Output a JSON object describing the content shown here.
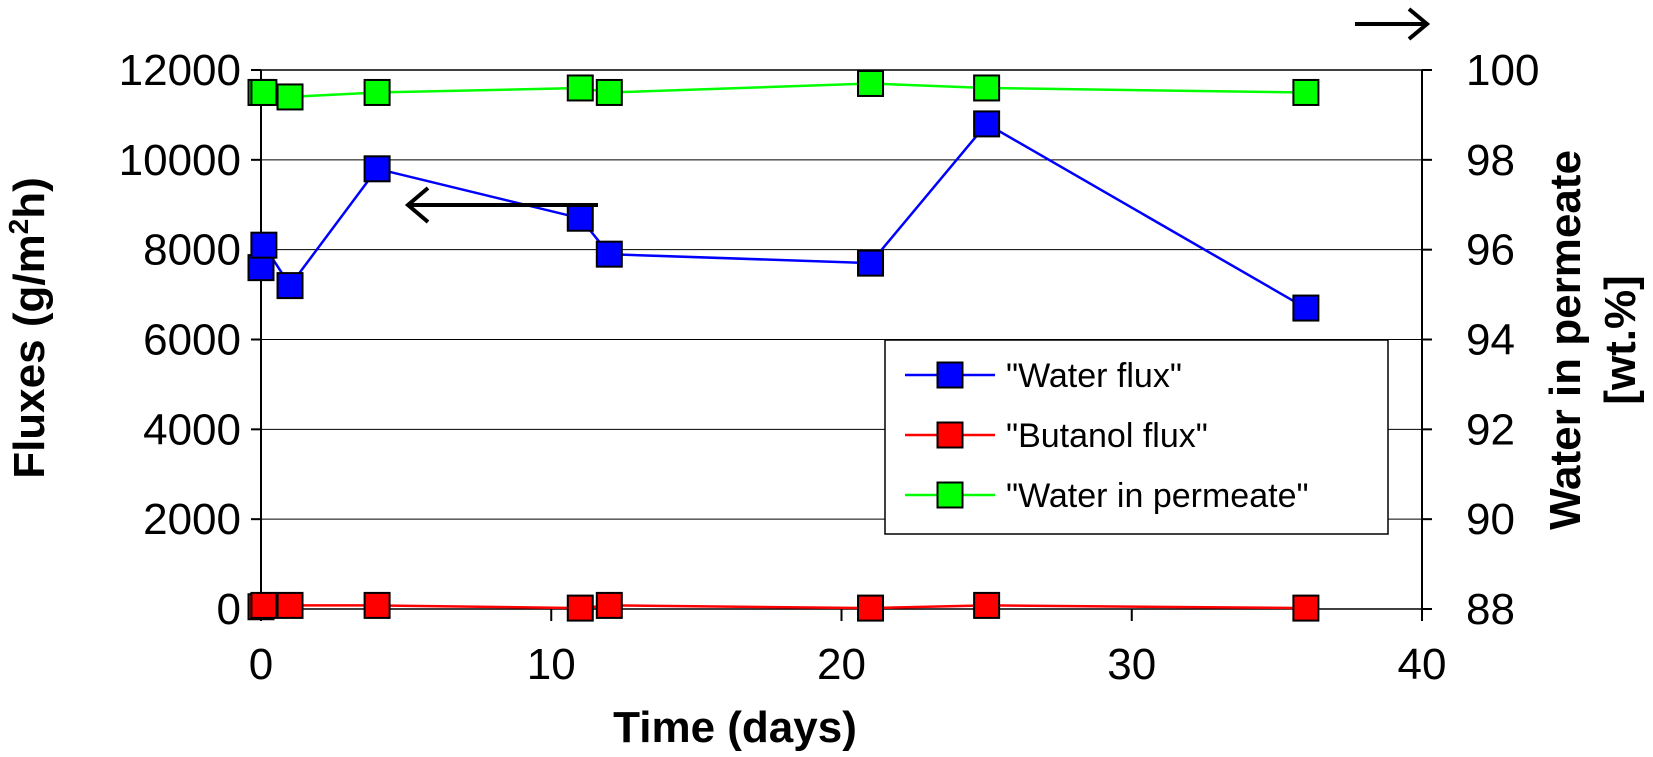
{
  "chart_data": {
    "type": "line",
    "xlabel": "Time (days)",
    "ylabel_left_main": "Fluxes (g/m",
    "ylabel_left_sup": "2",
    "ylabel_left_tail": "h)",
    "ylabel_right_line1": "Water in permeate",
    "ylabel_right_line2": "[wt.%]",
    "xlim": [
      0,
      40
    ],
    "ylim_left": [
      0,
      12000
    ],
    "ylim_right": [
      88,
      100
    ],
    "x_ticks": [
      "0",
      "10",
      "20",
      "30",
      "40"
    ],
    "y_left_ticks": [
      "0",
      "2000",
      "4000",
      "6000",
      "8000",
      "10000",
      "12000"
    ],
    "y_right_ticks": [
      "88",
      "90",
      "92",
      "94",
      "96",
      "98",
      "100"
    ],
    "grid": "horizontal",
    "legend_position": "center-right",
    "series": [
      {
        "name": "\"Water flux\"",
        "axis": "left",
        "color": "#0000ff",
        "x": [
          0,
          0.1,
          1,
          4,
          11,
          12,
          21,
          25,
          36
        ],
        "y": [
          7600,
          8100,
          7200,
          9800,
          8700,
          7900,
          7700,
          10800,
          6700
        ]
      },
      {
        "name": "\"Butanol flux\"",
        "axis": "left",
        "color": "#ff0000",
        "x": [
          0,
          0.1,
          1,
          4,
          11,
          12,
          21,
          25,
          36
        ],
        "y": [
          50,
          80,
          80,
          80,
          20,
          80,
          20,
          80,
          20
        ]
      },
      {
        "name": "\"Water in permeate\"",
        "axis": "right",
        "color": "#00ff00",
        "x": [
          0,
          0.1,
          1,
          4,
          11,
          12,
          21,
          25,
          36
        ],
        "y": [
          99.5,
          99.5,
          99.4,
          99.5,
          99.6,
          99.5,
          99.7,
          99.6,
          99.5
        ]
      }
    ]
  }
}
